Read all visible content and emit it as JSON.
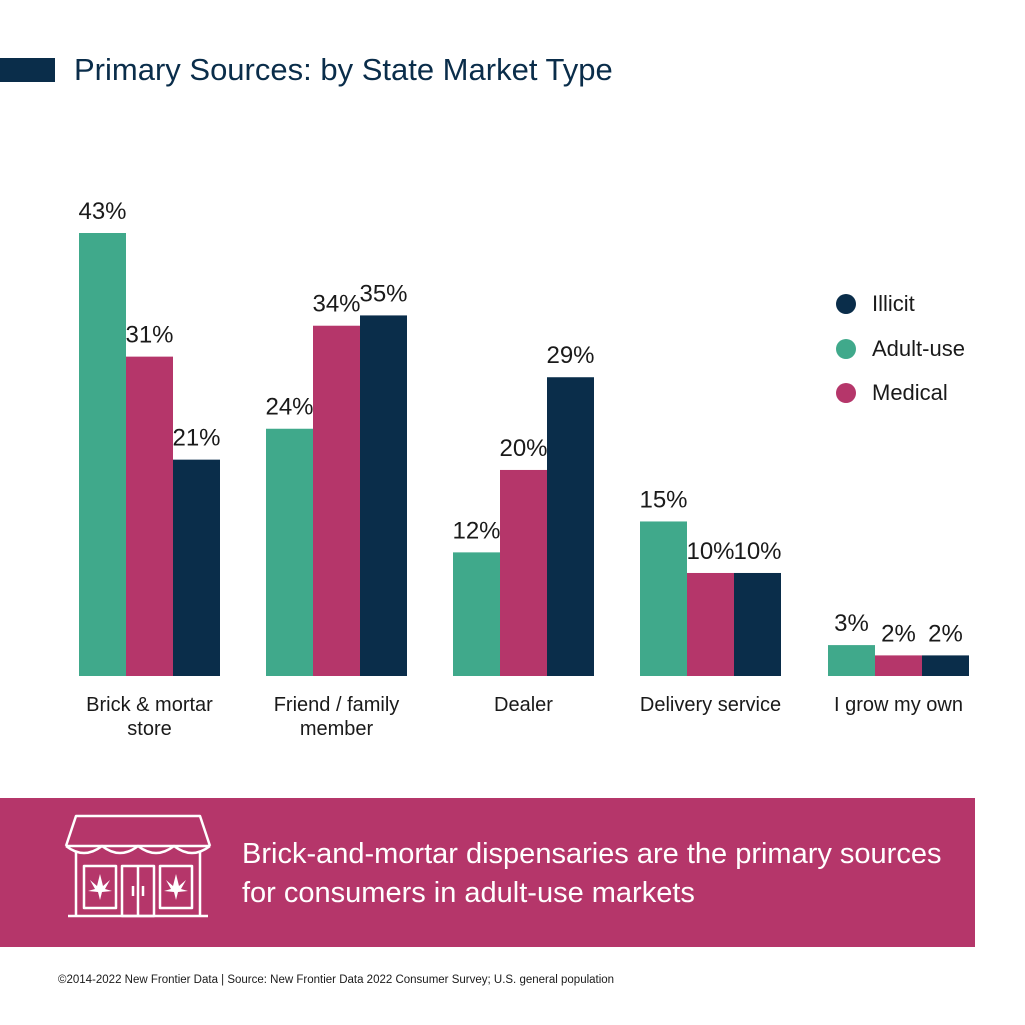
{
  "title": "Primary Sources: by State Market Type",
  "colors": {
    "navy": "#0a2d4a",
    "Illicit": "#0a2d4a",
    "Adult-use": "#40a98b",
    "Medical": "#b5366a",
    "banner": "#b5366a"
  },
  "legend": [
    {
      "label": "Illicit",
      "color": "#0a2d4a"
    },
    {
      "label": "Adult-use",
      "color": "#40a98b"
    },
    {
      "label": "Medical",
      "color": "#b5366a"
    }
  ],
  "chart_data": {
    "type": "bar",
    "categories": [
      "Brick & mortar store",
      "Friend / family member",
      "Dealer",
      "Delivery service",
      "I grow my own"
    ],
    "category_lines": [
      [
        "Brick & mortar",
        "store"
      ],
      [
        "Friend / family",
        "member"
      ],
      [
        "Dealer"
      ],
      [
        "Delivery service"
      ],
      [
        "I grow my own"
      ]
    ],
    "series": [
      {
        "name": "Adult-use",
        "values": [
          43,
          24,
          12,
          15,
          3
        ]
      },
      {
        "name": "Medical",
        "values": [
          31,
          34,
          20,
          10,
          2
        ]
      },
      {
        "name": "Illicit",
        "values": [
          21,
          35,
          29,
          10,
          2
        ]
      }
    ],
    "value_suffix": "%",
    "ylim": [
      0,
      45
    ],
    "grid": false,
    "legend_position": "right"
  },
  "banner": {
    "text": "Brick-and-mortar dispensaries are the primary sources for consumers in adult-use markets",
    "icon": "storefront-icon"
  },
  "footer": "©2014-2022  New Frontier Data | Source: New Frontier Data 2022 Consumer Survey; U.S. general population"
}
